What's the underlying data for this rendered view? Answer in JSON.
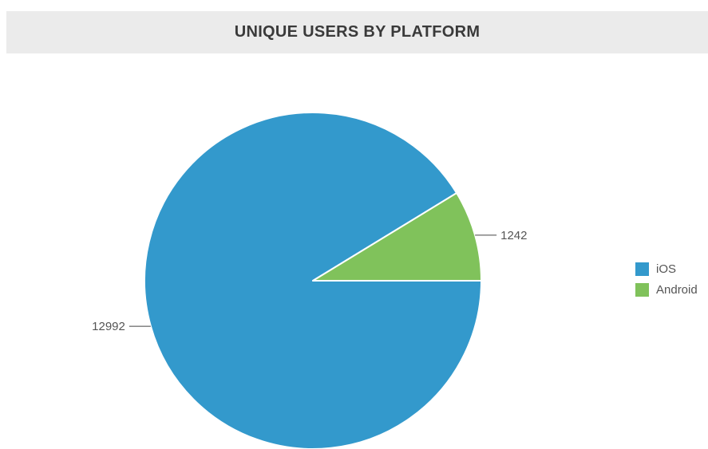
{
  "chart_data": {
    "type": "pie",
    "title": "UNIQUE USERS BY PLATFORM",
    "categories": [
      "iOS",
      "Android"
    ],
    "values": [
      12992,
      1242
    ],
    "colors": [
      "#3399cc",
      "#80c25b"
    ],
    "legend_position": "right"
  },
  "legend": {
    "items": [
      {
        "label": "iOS",
        "color": "#3399cc"
      },
      {
        "label": "Android",
        "color": "#80c25b"
      }
    ]
  }
}
